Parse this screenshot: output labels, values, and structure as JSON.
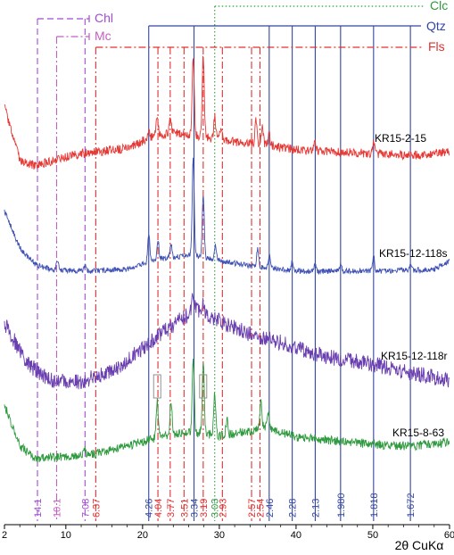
{
  "chart_data": {
    "type": "line",
    "xlabel": "2θ CuKα",
    "xlim": [
      2,
      60
    ],
    "x_ticks": [
      2,
      10,
      20,
      30,
      40,
      50,
      60
    ],
    "grid": false,
    "legend": {
      "placement": "top",
      "entries": [
        {
          "name": "Chl",
          "color": "#a24bd6",
          "dash": "dash"
        },
        {
          "name": "Mc",
          "color": "#c45fc2",
          "dash": "dashdot"
        },
        {
          "name": "Clc",
          "color": "#2e9a3d",
          "dash": "dot"
        },
        {
          "name": "Qtz",
          "color": "#3346a0",
          "dash": "solid"
        },
        {
          "name": "Fls",
          "color": "#e03131",
          "dash": "dashdot"
        }
      ]
    },
    "series": [
      {
        "name": "KR15-2-15",
        "color": "#e53935",
        "background": [
          [
            2,
            120
          ],
          [
            4,
            180
          ],
          [
            6,
            186
          ],
          [
            9,
            178
          ],
          [
            12,
            172
          ],
          [
            14,
            170
          ],
          [
            18,
            166
          ],
          [
            21,
            154
          ],
          [
            24,
            148
          ],
          [
            27,
            152
          ],
          [
            30,
            156
          ],
          [
            33,
            160
          ],
          [
            36,
            162
          ],
          [
            40,
            168
          ],
          [
            45,
            170
          ],
          [
            50,
            172
          ],
          [
            55,
            174
          ],
          [
            60,
            170
          ]
        ],
        "peaks": [
          [
            20.8,
            10
          ],
          [
            21.9,
            22
          ],
          [
            23.6,
            18
          ],
          [
            26.6,
            90
          ],
          [
            27.9,
            92
          ],
          [
            29.4,
            24
          ],
          [
            30.2,
            14
          ],
          [
            34.8,
            28
          ],
          [
            35.6,
            18
          ],
          [
            36.5,
            12
          ],
          [
            42.5,
            10
          ],
          [
            50.1,
            12
          ]
        ],
        "noise": 5
      },
      {
        "name": "KR15-12-118s",
        "color": "#3f51b5",
        "background": [
          [
            2,
            236
          ],
          [
            4,
            278
          ],
          [
            6,
            296
          ],
          [
            8,
            302
          ],
          [
            12,
            304
          ],
          [
            18,
            302
          ],
          [
            22,
            290
          ],
          [
            26,
            286
          ],
          [
            30,
            292
          ],
          [
            34,
            298
          ],
          [
            40,
            304
          ],
          [
            50,
            304
          ],
          [
            58,
            302
          ],
          [
            60,
            292
          ]
        ],
        "peaks": [
          [
            8.9,
            10
          ],
          [
            12.5,
            6
          ],
          [
            20.8,
            32
          ],
          [
            22.0,
            22
          ],
          [
            23.7,
            14
          ],
          [
            26.6,
            112
          ],
          [
            27.9,
            72
          ],
          [
            29.5,
            16
          ],
          [
            35.0,
            20
          ],
          [
            36.5,
            14
          ],
          [
            39.5,
            10
          ],
          [
            42.5,
            10
          ],
          [
            45.8,
            8
          ],
          [
            50.1,
            16
          ],
          [
            54.9,
            6
          ]
        ],
        "noise": 3
      },
      {
        "name": "KR15-12-118r",
        "color": "#6a3fb0",
        "background": [
          [
            2,
            362
          ],
          [
            5,
            408
          ],
          [
            8,
            426
          ],
          [
            12,
            428
          ],
          [
            16,
            416
          ],
          [
            20,
            390
          ],
          [
            24,
            364
          ],
          [
            27,
            346
          ],
          [
            30,
            360
          ],
          [
            34,
            374
          ],
          [
            38,
            384
          ],
          [
            44,
            400
          ],
          [
            50,
            408
          ],
          [
            55,
            418
          ],
          [
            60,
            426
          ]
        ],
        "peaks": [
          [
            26.6,
            18
          ],
          [
            27.9,
            14
          ]
        ],
        "noise": 9
      },
      {
        "name": "KR15-8-63",
        "color": "#2e9a3d",
        "background": [
          [
            2,
            454
          ],
          [
            4,
            500
          ],
          [
            6,
            514
          ],
          [
            10,
            512
          ],
          [
            14,
            508
          ],
          [
            18,
            500
          ],
          [
            22,
            490
          ],
          [
            26,
            484
          ],
          [
            30,
            488
          ],
          [
            34,
            484
          ],
          [
            36,
            478
          ],
          [
            40,
            490
          ],
          [
            45,
            494
          ],
          [
            50,
            498
          ],
          [
            55,
            500
          ],
          [
            60,
            496
          ]
        ],
        "peaks": [
          [
            12.4,
            8
          ],
          [
            21.9,
            42
          ],
          [
            23.7,
            40
          ],
          [
            26.6,
            84
          ],
          [
            27.9,
            82
          ],
          [
            29.4,
            46
          ],
          [
            31.0,
            16
          ],
          [
            35.4,
            28
          ],
          [
            36.4,
            18
          ]
        ],
        "noise": 5
      }
    ],
    "d_spacings": [
      {
        "label": "14.1",
        "x": 6.3,
        "phase": "Chl",
        "color": "#a24bd6",
        "dash": "dash",
        "top_y": 21
      },
      {
        "label": "10.1",
        "x": 8.8,
        "phase": "Mc",
        "color": "#c45fc2",
        "dash": "dashdot",
        "top_y": 41
      },
      {
        "label": "7.08",
        "x": 12.5,
        "phase": "Chl",
        "color": "#a24bd6",
        "dash": "dash",
        "top_y": 21
      },
      {
        "label": "6.37",
        "x": 13.9,
        "phase": "Fls",
        "color": "#e03131",
        "dash": "dashdot",
        "top_y": 53
      },
      {
        "label": "4.26",
        "x": 20.8,
        "phase": "Qtz",
        "color": "#3346a0",
        "dash": "solid",
        "top_y": 29
      },
      {
        "label": "4.04",
        "x": 22.0,
        "phase": "Fls",
        "color": "#e03131",
        "dash": "dashdot",
        "top_y": 53
      },
      {
        "label": "3.77",
        "x": 23.6,
        "phase": "Fls",
        "color": "#e03131",
        "dash": "dashdot",
        "top_y": 53
      },
      {
        "label": "3.51",
        "x": 25.4,
        "phase": "Fls",
        "color": "#e03131",
        "dash": "dashdot",
        "top_y": 53
      },
      {
        "label": "3.34",
        "x": 26.7,
        "phase": "Qtz",
        "color": "#3346a0",
        "dash": "solid",
        "top_y": 29
      },
      {
        "label": "3.19",
        "x": 27.9,
        "phase": "Fls",
        "color": "#e03131",
        "dash": "dashdot",
        "top_y": 53
      },
      {
        "label": "3.03",
        "x": 29.4,
        "phase": "Clc",
        "color": "#2e9a3d",
        "dash": "dot",
        "top_y": 7
      },
      {
        "label": "2.93",
        "x": 30.4,
        "phase": "Fls",
        "color": "#e03131",
        "dash": "dashdot",
        "top_y": 53
      },
      {
        "label": "2.57",
        "x": 34.2,
        "phase": "Fls",
        "color": "#e03131",
        "dash": "dashdot",
        "top_y": 53
      },
      {
        "label": "2.54",
        "x": 35.3,
        "phase": "Fls",
        "color": "#e03131",
        "dash": "dashdot",
        "top_y": 53
      },
      {
        "label": "2.46",
        "x": 36.5,
        "phase": "Qtz",
        "color": "#3346a0",
        "dash": "solid",
        "top_y": 29
      },
      {
        "label": "2.28",
        "x": 39.5,
        "phase": "Qtz",
        "color": "#3346a0",
        "dash": "solid",
        "top_y": 29
      },
      {
        "label": "2.13",
        "x": 42.5,
        "phase": "Qtz",
        "color": "#3346a0",
        "dash": "solid",
        "top_y": 29
      },
      {
        "label": "1.980",
        "x": 45.8,
        "phase": "Qtz",
        "color": "#3346a0",
        "dash": "solid",
        "top_y": 29
      },
      {
        "label": "1.818",
        "x": 50.1,
        "phase": "Qtz",
        "color": "#3346a0",
        "dash": "solid",
        "top_y": 29
      },
      {
        "label": "1.672",
        "x": 54.9,
        "phase": "Qtz",
        "color": "#3346a0",
        "dash": "solid",
        "top_y": 29
      }
    ]
  }
}
